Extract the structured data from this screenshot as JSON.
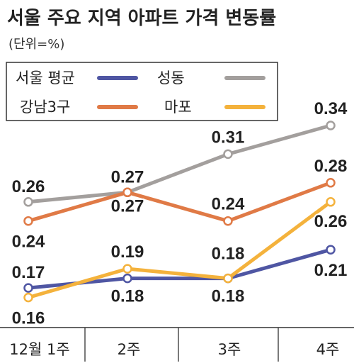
{
  "title": "서울 주요 지역 아파트 가격 변동률",
  "unit": "(단위=%)",
  "chart_data": {
    "type": "line",
    "title": "서울 주요 지역 아파트 가격 변동률",
    "unit": "(단위=%)",
    "categories": [
      "12월 1주",
      "2주",
      "3주",
      "4주"
    ],
    "ylim": [
      0.13,
      0.36
    ],
    "grid": false,
    "legend_placement": "top",
    "series": [
      {
        "name": "서울 평균",
        "color": "#4f56a3",
        "values": [
          0.17,
          0.18,
          0.18,
          0.21
        ],
        "labels": [
          "0.17",
          "0.18",
          "0.18",
          "0.21"
        ]
      },
      {
        "name": "성동",
        "color": "#a39f9d",
        "values": [
          0.26,
          0.27,
          0.31,
          0.34
        ],
        "labels": [
          "0.26",
          "0.27",
          "0.31",
          "0.34"
        ]
      },
      {
        "name": "강남3구",
        "color": "#e07a46",
        "values": [
          0.24,
          0.27,
          0.24,
          0.28
        ],
        "labels": [
          "0.24",
          "0.27",
          "0.24",
          "0.28"
        ]
      },
      {
        "name": "마포",
        "color": "#f4b23c",
        "values": [
          0.16,
          0.19,
          0.18,
          0.26
        ],
        "labels": [
          "0.16",
          "0.19",
          "0.18",
          "0.26"
        ]
      }
    ]
  }
}
